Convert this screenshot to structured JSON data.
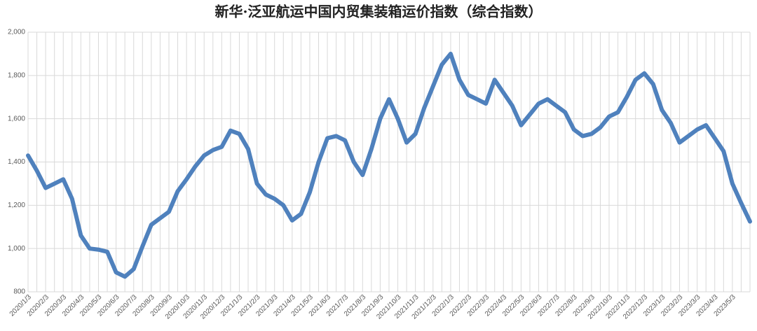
{
  "chart_data": {
    "type": "line",
    "title": "新华·泛亚航运中国内贸集装箱运价指数（综合指数）",
    "categories": [
      "2020/1/3",
      null,
      "2020/2/3",
      null,
      "2020/3/3",
      null,
      "2020/4/3",
      null,
      "2020/5/3",
      null,
      "2020/6/3",
      null,
      "2020/7/3",
      null,
      "2020/8/3",
      null,
      "2020/9/3",
      null,
      "2020/10/3",
      null,
      "2020/11/3",
      null,
      "2020/12/3",
      null,
      "2021/1/3",
      null,
      "2021/2/3",
      null,
      "2021/3/3",
      null,
      "2021/4/3",
      null,
      "2021/5/3",
      null,
      "2021/6/3",
      null,
      "2021/7/3",
      null,
      "2021/8/3",
      null,
      "2021/9/3",
      null,
      "2021/10/3",
      null,
      "2021/11/3",
      null,
      "2021/12/3",
      null,
      "2022/1/3",
      null,
      "2022/2/3",
      null,
      "2022/3/3",
      null,
      "2022/4/3",
      null,
      "2022/5/3",
      null,
      "2022/6/3",
      null,
      "2022/7/3",
      null,
      "2022/8/3",
      null,
      "2022/9/3",
      null,
      "2022/10/3",
      null,
      "2022/11/3",
      null,
      "2022/12/3",
      null,
      "2023/1/3",
      null,
      "2023/2/3",
      null,
      "2023/3/3",
      null,
      "2023/4/3",
      null,
      "2023/5/3",
      null,
      null
    ],
    "series": [
      {
        "color": "#4f81bd",
        "values": [
          1430,
          1360,
          1280,
          1300,
          1320,
          1230,
          1060,
          1000,
          995,
          985,
          890,
          870,
          905,
          1010,
          1110,
          1140,
          1170,
          1265,
          1320,
          1380,
          1430,
          1455,
          1470,
          1545,
          1530,
          1460,
          1300,
          1250,
          1230,
          1200,
          1130,
          1160,
          1260,
          1400,
          1510,
          1520,
          1500,
          1400,
          1340,
          1460,
          1600,
          1690,
          1600,
          1490,
          1530,
          1650,
          1750,
          1850,
          1900,
          1780,
          1710,
          1690,
          1670,
          1780,
          1720,
          1660,
          1570,
          1620,
          1670,
          1690,
          1660,
          1630,
          1550,
          1520,
          1530,
          1560,
          1610,
          1630,
          1700,
          1780,
          1810,
          1760,
          1640,
          1580,
          1490,
          1520,
          1550,
          1570,
          1510,
          1450,
          1300,
          1210,
          1125
        ]
      }
    ],
    "ylim": [
      800,
      2000
    ],
    "yticks": [
      800,
      {
        "value": 1000,
        "label": "1,000"
      },
      {
        "value": 1200,
        "label": "1,200"
      },
      {
        "value": 1400,
        "label": "1,400"
      },
      {
        "value": 1600,
        "label": "1,600"
      },
      {
        "value": 1800,
        "label": "1,800"
      },
      {
        "value": 2000,
        "label": "2,000"
      }
    ],
    "grid": true
  }
}
